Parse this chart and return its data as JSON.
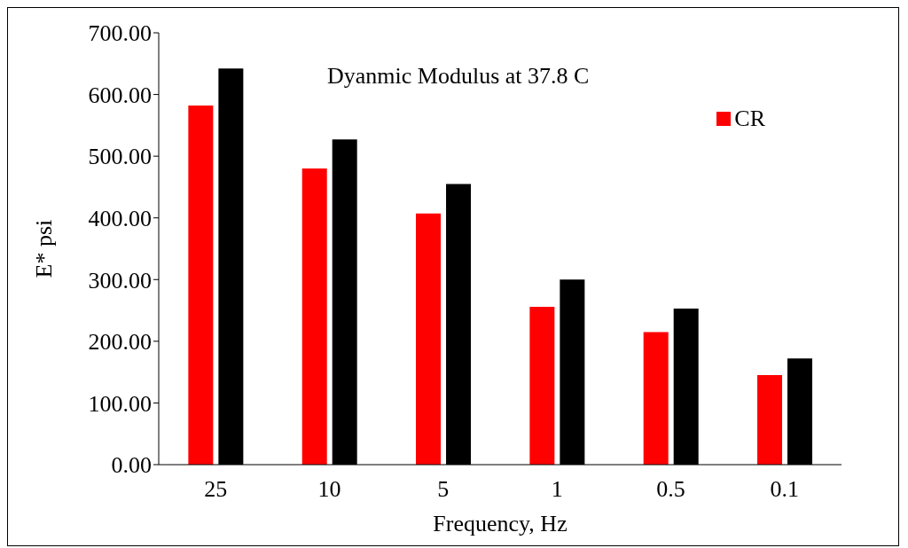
{
  "chart_data": {
    "type": "bar",
    "title": "Dyanmic Modulus at 37.8 C",
    "xlabel": "Frequency, Hz",
    "ylabel": "E* psi",
    "categories": [
      "25",
      "10",
      "5",
      "1",
      "0.5",
      "0.1"
    ],
    "series": [
      {
        "name": "CR",
        "color": "#ff0000",
        "values": [
          582,
          480,
          407,
          256,
          215,
          145
        ]
      },
      {
        "color": "#000000",
        "values": [
          642,
          527,
          455,
          300,
          253,
          172
        ]
      }
    ],
    "ylim": [
      0,
      700
    ],
    "yticks": [
      {
        "value": 0,
        "label": "0.00"
      },
      {
        "value": 100,
        "label": "100.00"
      },
      {
        "value": 200,
        "label": "200.00"
      },
      {
        "value": 300,
        "label": "300.00"
      },
      {
        "value": 400,
        "label": "400.00"
      },
      {
        "value": 500,
        "label": "500.00"
      },
      {
        "value": 600,
        "label": "600.00"
      },
      {
        "value": 700,
        "label": "700.00"
      }
    ],
    "grid": false,
    "legend": "top right"
  }
}
